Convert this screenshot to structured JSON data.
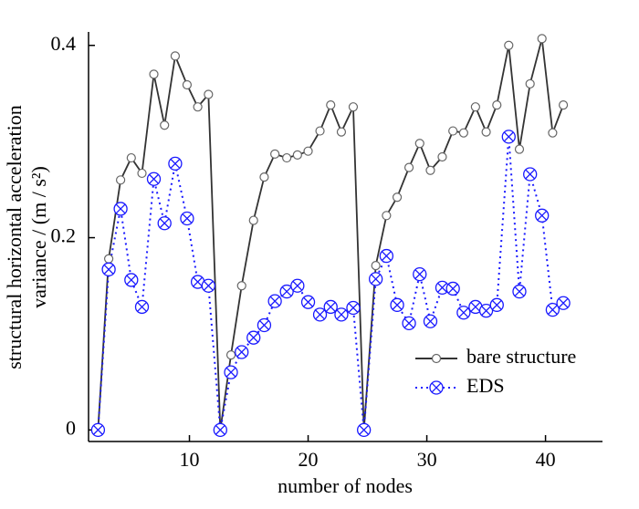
{
  "chart_data": {
    "type": "line",
    "xlabel": "number of nodes",
    "ylabel": [
      "structural horizontal acceleration",
      "variance / (m / s²)"
    ],
    "x": [
      2.3,
      3.2,
      4.2,
      5.1,
      6.0,
      7.0,
      7.9,
      8.8,
      9.8,
      10.7,
      11.6,
      12.6,
      13.5,
      14.4,
      15.4,
      16.3,
      17.2,
      18.2,
      19.1,
      20.0,
      21.0,
      21.9,
      22.8,
      23.8,
      24.7,
      25.7,
      26.6,
      27.5,
      28.5,
      29.4,
      30.3,
      31.3,
      32.2,
      33.1,
      34.1,
      35.0,
      35.9,
      36.9,
      37.8,
      38.7,
      39.7,
      40.6,
      41.5
    ],
    "series": [
      {
        "name": "bare structure",
        "color": "#333333",
        "marker": "circle",
        "linestyle": "solid",
        "values": [
          0,
          0.178,
          0.26,
          0.283,
          0.267,
          0.37,
          0.317,
          0.389,
          0.359,
          0.336,
          0.349,
          0,
          0.078,
          0.15,
          0.218,
          0.263,
          0.287,
          0.283,
          0.286,
          0.29,
          0.311,
          0.338,
          0.31,
          0.336,
          0,
          0.171,
          0.223,
          0.242,
          0.273,
          0.298,
          0.27,
          0.284,
          0.311,
          0.309,
          0.336,
          0.31,
          0.338,
          0.4,
          0.292,
          0.36,
          0.407,
          0.309,
          0.338
        ]
      },
      {
        "name": "EDS",
        "color": "#1a1aff",
        "marker": "circle-x",
        "linestyle": "dotted",
        "values": [
          0,
          0.167,
          0.23,
          0.156,
          0.128,
          0.261,
          0.215,
          0.277,
          0.22,
          0.154,
          0.15,
          0,
          0.06,
          0.081,
          0.096,
          0.109,
          0.134,
          0.144,
          0.15,
          0.133,
          0.12,
          0.128,
          0.12,
          0.127,
          0,
          0.157,
          0.181,
          0.13,
          0.111,
          0.162,
          0.113,
          0.148,
          0.147,
          0.122,
          0.128,
          0.124,
          0.13,
          0.305,
          0.144,
          0.266,
          0.223,
          0.125,
          0.132
        ]
      }
    ],
    "xlim": [
      1.5,
      44.8
    ],
    "ylim": [
      -0.012,
      0.414
    ],
    "xticks": [
      10,
      20,
      30,
      40
    ],
    "yticks": [
      0,
      0.2,
      0.4
    ],
    "legend": "lower right"
  }
}
